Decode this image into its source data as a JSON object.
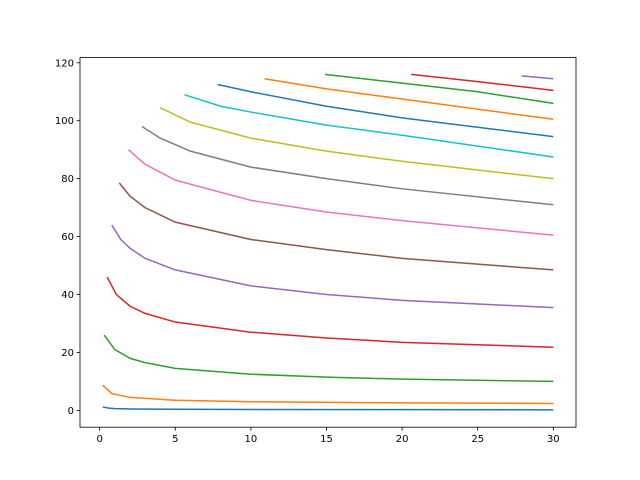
{
  "chart_data": {
    "type": "line",
    "xlim": [
      -1.3,
      31.5
    ],
    "ylim": [
      -5.8,
      121.8
    ],
    "xticks": [
      0,
      5,
      10,
      15,
      20,
      25,
      30
    ],
    "yticks": [
      0,
      20,
      40,
      60,
      80,
      100,
      120
    ],
    "series": [
      {
        "color": "#1f77b4",
        "x": [
          0.2,
          0.6,
          1,
          2,
          5,
          10,
          20,
          30
        ],
        "values": [
          1.2,
          0.8,
          0.6,
          0.5,
          0.4,
          0.3,
          0.25,
          0.2
        ]
      },
      {
        "color": "#ff7f0e",
        "x": [
          0.2,
          0.8,
          2,
          5,
          10,
          20,
          30
        ],
        "values": [
          8.7,
          5.8,
          4.5,
          3.5,
          3,
          2.6,
          2.4
        ]
      },
      {
        "color": "#2ca02c",
        "x": [
          0.3,
          1,
          2,
          3,
          5,
          10,
          15,
          20,
          30
        ],
        "values": [
          26,
          21,
          18,
          16.5,
          14.5,
          12.5,
          11.5,
          10.8,
          10
        ]
      },
      {
        "color": "#d62728",
        "x": [
          0.5,
          1.1,
          2,
          3,
          5,
          10,
          15,
          20,
          30
        ],
        "values": [
          46,
          40,
          36,
          33.5,
          30.5,
          27,
          25,
          23.5,
          21.8
        ]
      },
      {
        "color": "#9467bd",
        "x": [
          0.8,
          1.4,
          2,
          3,
          5,
          10,
          15,
          20,
          30
        ],
        "values": [
          64,
          59,
          56,
          52.5,
          48.5,
          43,
          40,
          38,
          35.5
        ]
      },
      {
        "color": "#8c564b",
        "x": [
          1.3,
          2,
          3,
          5,
          10,
          15,
          20,
          30
        ],
        "values": [
          78.5,
          74,
          70,
          65,
          59,
          55.5,
          52.5,
          48.5
        ]
      },
      {
        "color": "#e377c2",
        "x": [
          1.9,
          3,
          5,
          10,
          15,
          20,
          30
        ],
        "values": [
          90,
          85,
          79.5,
          72.5,
          68.5,
          65.5,
          60.5
        ]
      },
      {
        "color": "#7f7f7f",
        "x": [
          2.8,
          4,
          6,
          10,
          15,
          20,
          30
        ],
        "values": [
          98,
          94,
          89.5,
          84,
          80,
          76.5,
          71
        ]
      },
      {
        "color": "#bcbd22",
        "x": [
          4,
          6,
          10,
          15,
          20,
          30
        ],
        "values": [
          104.5,
          99.5,
          94,
          89.5,
          86,
          80
        ]
      },
      {
        "color": "#17becf",
        "x": [
          5.6,
          8,
          10,
          15,
          20,
          30
        ],
        "values": [
          109,
          105,
          103,
          98.5,
          95,
          87.5
        ]
      },
      {
        "color": "#1f77b4",
        "x": [
          7.8,
          10,
          15,
          20,
          30
        ],
        "values": [
          112.5,
          110,
          105,
          101,
          94.5
        ]
      },
      {
        "color": "#ff7f0e",
        "x": [
          10.9,
          15,
          20,
          30
        ],
        "values": [
          114.5,
          111,
          107.5,
          100.5
        ]
      },
      {
        "color": "#2ca02c",
        "x": [
          14.9,
          20,
          25,
          30
        ],
        "values": [
          116,
          113,
          110,
          106
        ]
      },
      {
        "color": "#d62728",
        "x": [
          20.6,
          25,
          30
        ],
        "values": [
          116,
          113.5,
          110.5
        ]
      },
      {
        "color": "#9467bd",
        "x": [
          27.9,
          30
        ],
        "values": [
          115.5,
          114.5
        ]
      }
    ]
  }
}
